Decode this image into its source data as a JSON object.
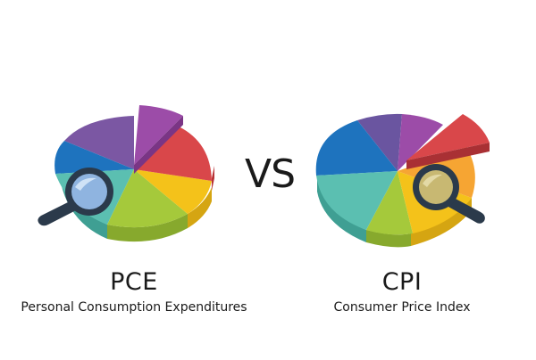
{
  "left": {
    "title": "PCE",
    "subtitle": "Personal Consumption Expenditures"
  },
  "separator": "VS",
  "right": {
    "title": "CPI",
    "subtitle": "Consumer Price Index"
  },
  "icons": [
    "pie-chart-icon",
    "magnifier-icon"
  ],
  "colors": {
    "purple": "#7b57a3",
    "magenta": "#9c4ca8",
    "red": "#d9474a",
    "yellow": "#f4c21a",
    "green": "#a5c93b",
    "teal": "#5bbfb1",
    "blue": "#1e73be",
    "orange": "#f6a533",
    "navy": "#2b3a4b"
  }
}
